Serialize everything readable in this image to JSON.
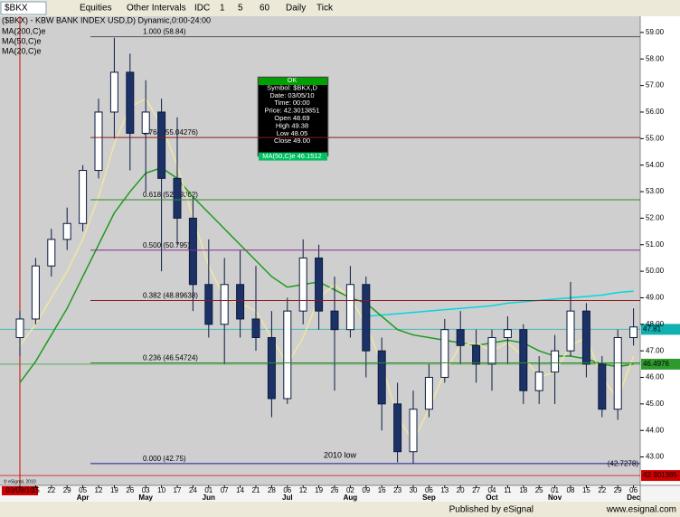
{
  "toolbar": [
    "$BKX",
    "Equities",
    "Other Intervals",
    "IDC",
    "1",
    "5",
    "60",
    "Daily",
    "Tick"
  ],
  "chart_data": {
    "type": "candlestick",
    "title": "($BKX) - KBW BANK INDEX USD,D) Dynamic,0:00-24:00",
    "categories": [
      "03/09/10",
      "15",
      "22",
      "29",
      "05",
      "12",
      "19",
      "26",
      "03",
      "10",
      "17",
      "24",
      "01",
      "07",
      "14",
      "21",
      "28",
      "06",
      "12",
      "19",
      "26",
      "02",
      "09",
      "16",
      "23",
      "30",
      "06",
      "13",
      "20",
      "27",
      "04",
      "11",
      "18",
      "25",
      "01",
      "08",
      "15",
      "22",
      "29",
      "06"
    ],
    "month_labels": [
      null,
      null,
      null,
      null,
      "Apr",
      null,
      null,
      null,
      "May",
      null,
      null,
      null,
      "Jun",
      null,
      null,
      null,
      null,
      "Jul",
      null,
      null,
      null,
      "Aug",
      null,
      null,
      null,
      null,
      "Sep",
      null,
      null,
      null,
      "Oct",
      null,
      null,
      null,
      "Nov",
      null,
      null,
      null,
      null,
      "Dec"
    ],
    "open": [
      47.5,
      48.2,
      50.2,
      51.2,
      51.8,
      53.8,
      56.0,
      57.5,
      55.2,
      56.0,
      53.5,
      52.0,
      49.5,
      48.0,
      49.5,
      48.2,
      47.5,
      45.2,
      48.5,
      50.5,
      48.5,
      47.8,
      49.5,
      47.0,
      45.0,
      43.2,
      44.8,
      46.0,
      47.8,
      47.2,
      46.5,
      47.5,
      47.8,
      45.5,
      46.2,
      47.0,
      48.5,
      46.5,
      44.8,
      47.5
    ],
    "high": [
      48.5,
      50.5,
      51.6,
      52.4,
      54.0,
      56.5,
      58.8,
      58.2,
      57.2,
      56.5,
      55.8,
      52.8,
      51.2,
      50.5,
      50.8,
      50.2,
      48.5,
      49.0,
      51.2,
      51.0,
      49.8,
      50.2,
      49.8,
      47.5,
      45.8,
      45.5,
      46.5,
      48.2,
      48.5,
      47.8,
      47.8,
      48.3,
      48.0,
      46.8,
      47.6,
      49.6,
      48.8,
      46.8,
      47.8,
      48.6
    ],
    "low": [
      46.8,
      48.0,
      49.8,
      50.8,
      51.5,
      53.5,
      55.0,
      53.8,
      53.0,
      50.0,
      51.0,
      48.5,
      47.5,
      46.5,
      47.5,
      47.0,
      44.5,
      45.0,
      48.0,
      47.8,
      45.5,
      47.5,
      46.0,
      44.0,
      42.8,
      42.75,
      44.5,
      45.8,
      46.5,
      45.8,
      45.5,
      46.5,
      45.0,
      45.0,
      45.0,
      46.8,
      46.0,
      44.5,
      44.4,
      47.2
    ],
    "close": [
      48.2,
      50.2,
      51.2,
      51.8,
      53.8,
      56.0,
      57.5,
      55.2,
      56.0,
      53.5,
      52.0,
      49.5,
      48.0,
      49.5,
      48.2,
      47.5,
      45.2,
      48.5,
      50.5,
      48.5,
      47.8,
      49.5,
      47.0,
      45.0,
      43.2,
      44.8,
      46.0,
      47.8,
      47.2,
      46.5,
      47.5,
      47.8,
      45.5,
      46.2,
      47.0,
      48.5,
      46.5,
      44.8,
      47.5,
      47.9
    ],
    "series": [
      {
        "name": "MA(200,C)e",
        "color": "#00d8e0",
        "values": [
          null,
          null,
          null,
          null,
          null,
          null,
          null,
          null,
          null,
          null,
          null,
          null,
          null,
          null,
          null,
          null,
          null,
          null,
          null,
          null,
          null,
          null,
          48.3,
          48.35,
          48.4,
          48.45,
          48.5,
          48.55,
          48.6,
          48.65,
          48.7,
          48.8,
          48.85,
          48.9,
          48.95,
          49.0,
          49.05,
          49.1,
          49.2,
          49.25
        ]
      },
      {
        "name": "MA(50,C)e",
        "color": "#1e9a1e",
        "values": [
          45.8,
          46.6,
          47.6,
          48.6,
          49.8,
          51.0,
          52.2,
          53.0,
          53.7,
          53.9,
          53.5,
          52.8,
          52.2,
          51.6,
          51.0,
          50.4,
          49.8,
          49.4,
          49.5,
          49.6,
          49.3,
          49.0,
          48.8,
          48.3,
          47.8,
          47.6,
          47.5,
          47.4,
          47.3,
          47.2,
          47.3,
          47.4,
          47.3,
          47.0,
          46.8,
          46.8,
          46.7,
          46.5,
          46.4,
          46.5
        ]
      },
      {
        "name": "MA(20,C)e",
        "color": "#f0e6a0",
        "values": [
          47.2,
          48.0,
          49.0,
          50.0,
          51.2,
          52.8,
          54.8,
          56.2,
          56.5,
          55.5,
          54.0,
          52.0,
          50.2,
          49.0,
          48.8,
          48.5,
          47.5,
          46.5,
          47.5,
          49.0,
          49.5,
          49.0,
          48.0,
          46.5,
          44.5,
          43.6,
          44.8,
          46.2,
          47.2,
          47.3,
          47.0,
          47.3,
          46.8,
          46.0,
          46.2,
          47.2,
          47.5,
          46.0,
          45.2,
          46.8
        ]
      }
    ],
    "ylim": [
      41.93,
      59.61
    ],
    "yticks": [
      {
        "value": 43,
        "label": "43.00"
      },
      {
        "value": 44,
        "label": "44.00"
      },
      {
        "value": 45,
        "label": "45.00"
      },
      {
        "value": 46,
        "label": "46.00"
      },
      {
        "value": 47,
        "label": "47.00"
      },
      {
        "value": 48,
        "label": "48.00"
      },
      {
        "value": 49,
        "label": "49.00"
      },
      {
        "value": 50,
        "label": "50.00"
      },
      {
        "value": 51,
        "label": "51.00"
      },
      {
        "value": 52,
        "label": "52.00"
      },
      {
        "value": 53,
        "label": "53.00"
      },
      {
        "value": 54,
        "label": "54.00"
      },
      {
        "value": 55,
        "label": "55.00"
      },
      {
        "value": 56,
        "label": "56.00"
      },
      {
        "value": 57,
        "label": "57.00"
      },
      {
        "value": 58,
        "label": "58.00"
      },
      {
        "value": 59,
        "label": "59.00"
      }
    ],
    "fib_levels": [
      {
        "label": "1.000 (58.84)",
        "value": 58.84,
        "color": "#555555"
      },
      {
        "label": "0.764 (55.04276)",
        "value": 55.04276,
        "color": "#8b1a1a"
      },
      {
        "label": "0.618 (52.69362)",
        "value": 52.69362,
        "color": "#2e8b2e"
      },
      {
        "label": "0.500 (50.795)",
        "value": 50.795,
        "color": "#8b2c8b"
      },
      {
        "label": "0.382 (48.89638)",
        "value": 48.89638,
        "color": "#8b1a1a"
      },
      {
        "label": "0.236 (46.54724)",
        "value": 46.54724,
        "color": "#2e8b2e"
      },
      {
        "label": "0.000 (42.75)",
        "value": 42.75,
        "color": "#1a1aa0"
      }
    ],
    "price_labels": [
      {
        "value": 47.81,
        "label": "47.81",
        "color": "#10b0b0"
      },
      {
        "value": 46.4976,
        "label": "46.4976",
        "color": "#2e9a2e"
      },
      {
        "value": 42.7278,
        "label": "(42.7278)",
        "color": null
      },
      {
        "value": 42.301385,
        "label": "42.301385",
        "color": "#d00000"
      }
    ],
    "annotation": {
      "text": "2010 low",
      "value": 43.05
    },
    "info_box": [
      "OK",
      "Symbol: $BKX,D",
      "Date: 03/05/10",
      "Time: 00:00",
      "Price: 42.3013851",
      "Open 48.69",
      "High 49.38",
      "Low 48.05",
      "Close 49.00",
      "MA(50,C)e 46.1512"
    ]
  },
  "footer": {
    "copyright": "© eSignal, 2010",
    "published": "Published by eSignal",
    "url": "www.esignal.com"
  }
}
